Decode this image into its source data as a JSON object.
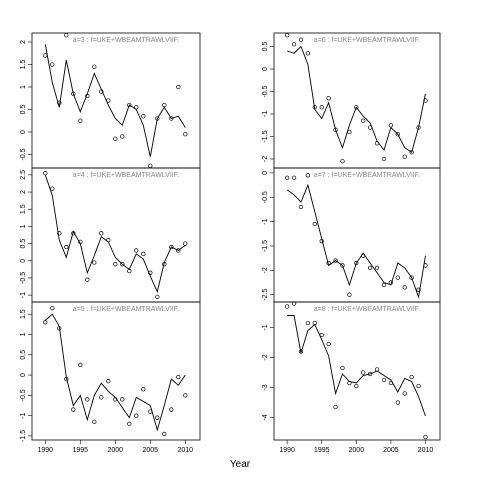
{
  "xlabel": "Year",
  "chart_data": [
    {
      "type": "line",
      "title": "a=3  :  f=UKE+WBEAMTRAWLVIIF.",
      "panel": [
        0,
        0
      ],
      "x": [
        1990,
        1991,
        1992,
        1993,
        1994,
        1995,
        1996,
        1997,
        1998,
        1999,
        2000,
        2001,
        2002,
        2003,
        2004,
        2005,
        2006,
        2007,
        2008,
        2009,
        2010
      ],
      "xlim": [
        1988.1,
        2012.1
      ],
      "ylim": [
        -0.8,
        2.2
      ],
      "yticks": [
        -0.5,
        0.0,
        0.5,
        1.0,
        1.5,
        2.0
      ],
      "series": [
        {
          "style": "line",
          "color": "#000000",
          "values": [
            1.95,
            1.1,
            0.55,
            1.6,
            0.85,
            0.45,
            0.85,
            1.3,
            0.95,
            0.6,
            0.3,
            0.15,
            0.6,
            0.5,
            0.15,
            -0.55,
            0.3,
            0.55,
            0.3,
            0.35,
            0.1
          ]
        },
        {
          "style": "points",
          "color": "#000000",
          "values": [
            1.7,
            1.5,
            0.65,
            2.15,
            0.85,
            0.25,
            0.8,
            1.45,
            0.9,
            0.7,
            -0.15,
            -0.1,
            0.6,
            0.55,
            0.35,
            -0.75,
            0.3,
            0.6,
            0.3,
            1.0,
            -0.05
          ]
        }
      ]
    },
    {
      "type": "line",
      "title": "a=4  :  f=UKE+WBEAMTRAWLVIIF.",
      "panel": [
        0,
        1
      ],
      "x": [
        1990,
        1991,
        1992,
        1993,
        1994,
        1995,
        1996,
        1997,
        1998,
        1999,
        2000,
        2001,
        2002,
        2003,
        2004,
        2005,
        2006,
        2007,
        2008,
        2009,
        2010
      ],
      "xlim": [
        1988.1,
        2012.1
      ],
      "ylim": [
        -1.2,
        2.7
      ],
      "yticks": [
        -1.0,
        -0.5,
        0.0,
        0.5,
        1.0,
        1.5,
        2.0,
        2.5
      ],
      "series": [
        {
          "style": "line",
          "color": "#000000",
          "values": [
            2.5,
            1.9,
            0.6,
            0.1,
            0.85,
            0.5,
            -0.35,
            0.15,
            0.7,
            0.55,
            0.1,
            -0.1,
            -0.25,
            0.2,
            0.05,
            -0.45,
            -0.9,
            -0.05,
            0.4,
            0.3,
            0.45
          ]
        },
        {
          "style": "points",
          "color": "#000000",
          "values": [
            2.55,
            2.1,
            0.8,
            0.4,
            0.8,
            0.55,
            -0.55,
            -0.05,
            0.8,
            0.6,
            -0.1,
            -0.1,
            -0.3,
            0.3,
            0.2,
            -0.35,
            -1.05,
            -0.1,
            0.4,
            0.3,
            0.5
          ]
        }
      ]
    },
    {
      "type": "line",
      "title": "a=5  :  f=UKE+WBEAMTRAWLVIIF.",
      "panel": [
        0,
        2
      ],
      "x": [
        1990,
        1991,
        1992,
        1993,
        1994,
        1995,
        1996,
        1997,
        1998,
        1999,
        2000,
        2001,
        2002,
        2003,
        2004,
        2005,
        2006,
        2007,
        2008,
        2009,
        2010
      ],
      "xlim": [
        1988.1,
        2012.1
      ],
      "ylim": [
        -1.6,
        1.8
      ],
      "yticks": [
        -1.5,
        -1.0,
        -0.5,
        0.0,
        0.5,
        1.0,
        1.5
      ],
      "xticks": [
        1990,
        1995,
        2000,
        2005,
        2010
      ],
      "series": [
        {
          "style": "line",
          "color": "#000000",
          "values": [
            1.35,
            1.5,
            1.2,
            -0.05,
            -0.75,
            -0.5,
            -1.1,
            -0.5,
            -0.2,
            -0.4,
            -0.55,
            -0.8,
            -1.05,
            -0.55,
            -0.65,
            -0.75,
            -1.35,
            -0.75,
            -0.1,
            -0.25,
            0.0
          ]
        },
        {
          "style": "points",
          "color": "#000000",
          "values": [
            1.3,
            1.65,
            1.15,
            -0.1,
            -0.85,
            0.25,
            -0.6,
            -1.15,
            -0.55,
            -0.15,
            -0.6,
            -0.6,
            -1.2,
            -1.0,
            -0.35,
            -0.9,
            -1.05,
            -1.45,
            -0.85,
            -0.05,
            -0.5
          ]
        }
      ]
    },
    {
      "type": "line",
      "title": "a=6  :  f=UKE+WBEAMTRAWLVIIF.",
      "panel": [
        1,
        0
      ],
      "x": [
        1990,
        1991,
        1992,
        1993,
        1994,
        1995,
        1996,
        1997,
        1998,
        1999,
        2000,
        2001,
        2002,
        2003,
        2004,
        2005,
        2006,
        2007,
        2008,
        2009,
        2010
      ],
      "xlim": [
        1988.1,
        2012.1
      ],
      "ylim": [
        -2.2,
        0.8
      ],
      "yticks": [
        -2.0,
        -1.5,
        -1.0,
        -0.5,
        0.0,
        0.5
      ],
      "series": [
        {
          "style": "line",
          "color": "#000000",
          "values": [
            0.4,
            0.35,
            0.5,
            0.1,
            -0.9,
            -1.1,
            -0.75,
            -1.35,
            -1.75,
            -1.25,
            -0.85,
            -1.05,
            -1.2,
            -1.6,
            -1.8,
            -1.3,
            -1.45,
            -1.75,
            -1.85,
            -1.3,
            -0.55
          ]
        },
        {
          "style": "points",
          "color": "#000000",
          "values": [
            0.75,
            0.55,
            0.65,
            0.35,
            -0.85,
            -0.85,
            -0.65,
            -1.35,
            -2.05,
            -1.4,
            -0.85,
            -1.15,
            -1.3,
            -1.65,
            -2.0,
            -1.25,
            -1.45,
            -1.95,
            -1.85,
            -1.3,
            -0.7
          ]
        }
      ]
    },
    {
      "type": "line",
      "title": "a=7  :  f=UKE+WBEAMTRAWLVIIF.",
      "panel": [
        1,
        1
      ],
      "x": [
        1990,
        1991,
        1992,
        1993,
        1994,
        1995,
        1996,
        1997,
        1998,
        1999,
        2000,
        2001,
        2002,
        2003,
        2004,
        2005,
        2006,
        2007,
        2008,
        2009,
        2010
      ],
      "xlim": [
        1988.1,
        2012.1
      ],
      "ylim": [
        -2.65,
        0.1
      ],
      "yticks": [
        -2.5,
        -2.0,
        -1.5,
        -1.0,
        -0.5,
        0.0
      ],
      "series": [
        {
          "style": "line",
          "color": "#000000",
          "values": [
            -0.35,
            -0.45,
            -0.6,
            -0.25,
            -0.8,
            -1.35,
            -1.9,
            -1.8,
            -1.9,
            -2.3,
            -1.85,
            -1.65,
            -1.85,
            -2.05,
            -2.25,
            -2.3,
            -1.85,
            -1.95,
            -2.15,
            -2.55,
            -1.7
          ]
        },
        {
          "style": "points",
          "color": "#000000",
          "values": [
            -0.1,
            -0.1,
            -0.7,
            -0.05,
            -1.05,
            -1.4,
            -1.85,
            -1.8,
            -1.9,
            -2.5,
            -1.85,
            -1.7,
            -1.95,
            -1.95,
            -2.3,
            -2.25,
            -2.15,
            -2.35,
            -2.15,
            -2.4,
            -1.9
          ]
        }
      ]
    },
    {
      "type": "line",
      "title": "a=8  :  f=UKE+WBEAMTRAWLVIIF.",
      "panel": [
        1,
        2
      ],
      "x": [
        1990,
        1991,
        1992,
        1993,
        1994,
        1995,
        1996,
        1997,
        1998,
        1999,
        2000,
        2001,
        2002,
        2003,
        2004,
        2005,
        2006,
        2007,
        2008,
        2009,
        2010
      ],
      "xlim": [
        1988.1,
        2012.1
      ],
      "ylim": [
        -4.75,
        -0.15
      ],
      "yticks": [
        -4,
        -3,
        -2,
        -1
      ],
      "xticks": [
        1990,
        1995,
        2000,
        2005,
        2010
      ],
      "series": [
        {
          "style": "line",
          "color": "#000000",
          "values": [
            -0.6,
            -0.6,
            -1.85,
            -1.1,
            -0.9,
            -1.4,
            -1.95,
            -3.2,
            -2.55,
            -2.8,
            -2.85,
            -2.6,
            -2.55,
            -2.45,
            -2.6,
            -2.75,
            -3.15,
            -2.7,
            -2.8,
            -3.3,
            -3.95
          ]
        },
        {
          "style": "points",
          "color": "#000000",
          "values": [
            -0.3,
            -0.2,
            -1.8,
            -0.85,
            -0.85,
            -1.25,
            -1.55,
            -3.65,
            -2.35,
            -2.85,
            -2.95,
            -2.5,
            -2.55,
            -2.4,
            -2.75,
            -2.85,
            -3.5,
            -3.2,
            -2.65,
            -2.95,
            -4.65
          ]
        }
      ]
    }
  ]
}
